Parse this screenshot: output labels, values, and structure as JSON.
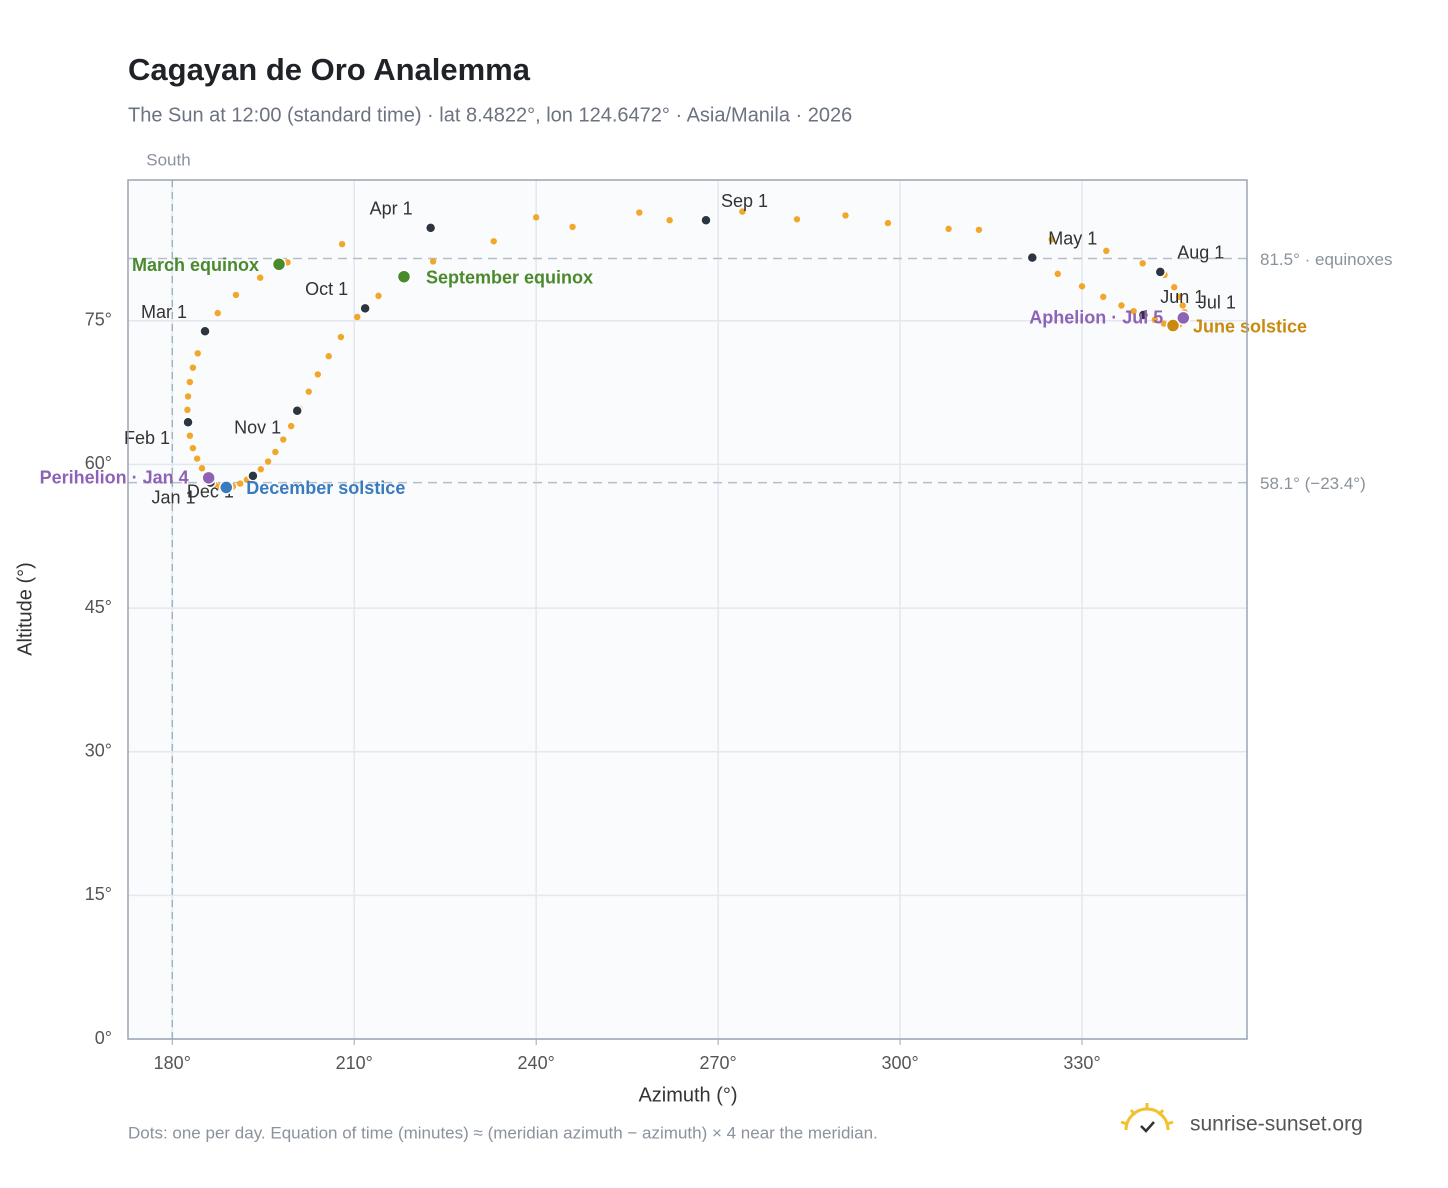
{
  "chart_data": {
    "type": "analemma",
    "title": "Cagayan de Oro Analemma",
    "subtitle": "The Sun at 12:00 (standard time) · lat 8.4822°, lon 124.6472° · Asia/Manila · 2026",
    "x_label": "Azimuth (°)",
    "y_label": "Altitude (°)",
    "footnote": "Dots: one per day. Equation of time (minutes) ≈ (meridian azimuth − azimuth) × 4 near the meridian.",
    "brand": "sunrise-sunset.org",
    "xlim": [
      172.7,
      357.2
    ],
    "ylim": [
      0,
      89.7
    ],
    "xticks": [
      {
        "value": 180,
        "label": "180°"
      },
      {
        "value": 210,
        "label": "210°"
      },
      {
        "value": 240,
        "label": "240°"
      },
      {
        "value": 270,
        "label": "270°"
      },
      {
        "value": 300,
        "label": "300°"
      },
      {
        "value": 330,
        "label": "330°"
      }
    ],
    "yticks": [
      {
        "value": 0,
        "label": "0°"
      },
      {
        "value": 15,
        "label": "15°"
      },
      {
        "value": 30,
        "label": "30°"
      },
      {
        "value": 45,
        "label": "45°"
      },
      {
        "value": 60,
        "label": "60°"
      },
      {
        "value": 75,
        "label": "75°"
      }
    ],
    "grid": true,
    "meridian": {
      "value": 180,
      "label": "South"
    },
    "reference_lines": [
      {
        "value": 81.5,
        "label": "81.5° · equinoxes"
      },
      {
        "value": 58.1,
        "label": "58.1° (−23.4°)"
      }
    ],
    "dots": {
      "color": "#f2a62a",
      "azimuth": [
        186.3,
        185.7,
        184.9,
        184.1,
        183.4,
        182.9,
        182.6,
        182.5,
        182.6,
        182.9,
        183.4,
        184.2,
        185.5,
        187.5,
        190.5,
        194.5,
        199.0,
        208.0,
        222.6,
        240.0,
        257.0,
        274.0,
        291.0,
        308.0,
        321.8,
        326.0,
        330.0,
        333.5,
        336.5,
        338.5,
        340.0,
        342.0,
        343.5,
        344.5,
        345.0,
        346.0,
        346.6,
        346.8,
        346.9,
        346.6,
        346.0,
        345.2,
        343.6,
        340.0,
        334.0,
        325.0,
        313.0,
        298.0,
        283.0,
        262.0,
        246.0,
        233.0,
        223.0,
        218.2,
        214.0,
        210.5,
        207.8,
        205.8,
        204.0,
        202.5,
        201.0,
        199.6,
        198.3,
        197.0,
        195.8,
        194.6,
        193.5,
        192.3,
        191.2,
        190.0,
        188.9,
        187.9,
        187.0
      ],
      "altitude": [
        58.1,
        58.8,
        59.6,
        60.6,
        61.7,
        63.0,
        64.3,
        65.7,
        67.1,
        68.6,
        70.1,
        71.6,
        74.0,
        75.8,
        77.7,
        79.5,
        81.1,
        83.0,
        84.7,
        85.8,
        86.3,
        86.4,
        86.0,
        84.6,
        81.6,
        79.9,
        78.6,
        77.5,
        76.6,
        76.0,
        75.6,
        75.1,
        74.7,
        74.5,
        74.5,
        74.6,
        75.1,
        75.4,
        75.9,
        76.6,
        77.5,
        78.5,
        79.8,
        81.0,
        82.3,
        83.5,
        84.5,
        85.2,
        85.6,
        85.5,
        84.8,
        83.3,
        81.2,
        79.6,
        77.6,
        75.4,
        73.3,
        71.3,
        69.4,
        67.6,
        65.8,
        64.0,
        62.6,
        61.3,
        60.3,
        59.5,
        58.9,
        58.4,
        58.0,
        57.7,
        57.6,
        57.7,
        57.9
      ]
    },
    "months": {
      "color": "#2d3540",
      "labels": [
        "Jan 1",
        "Feb 1",
        "Mar 1",
        "Apr 1",
        "May 1",
        "Jun 1",
        "Jul 1",
        "Aug 1",
        "Sep 1",
        "Oct 1",
        "Nov 1",
        "Dec 1"
      ],
      "azimuth": [
        186.3,
        182.6,
        185.4,
        222.6,
        321.8,
        340.1,
        346.8,
        342.9,
        268.0,
        211.8,
        200.6,
        193.3
      ],
      "altitude": [
        58.1,
        64.4,
        73.9,
        84.7,
        81.6,
        75.6,
        75.4,
        80.1,
        85.5,
        76.3,
        65.6,
        58.8
      ]
    },
    "events": [
      {
        "label": "March equinox",
        "azimuth": 197.6,
        "altitude": 80.9,
        "color": "#4a8a2c"
      },
      {
        "label": "September equinox",
        "azimuth": 218.2,
        "altitude": 79.6,
        "color": "#4a8a2c"
      },
      {
        "label": "June solstice",
        "azimuth": 345.0,
        "altitude": 74.5,
        "color": "#c98a10"
      },
      {
        "label": "December solstice",
        "azimuth": 188.9,
        "altitude": 57.6,
        "color": "#3a7bbf"
      },
      {
        "label": "Perihelion · Jan 4",
        "azimuth": 186.0,
        "altitude": 58.6,
        "color": "#8e63b5"
      },
      {
        "label": "Aphelion · Jul 5",
        "azimuth": 346.7,
        "altitude": 75.3,
        "color": "#8e63b5"
      }
    ]
  }
}
